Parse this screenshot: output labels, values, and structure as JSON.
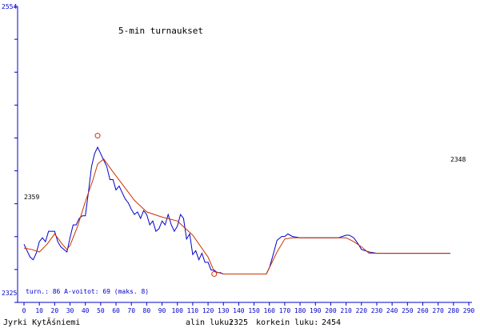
{
  "chart_data": {
    "type": "line",
    "title": "5-min turnaukset",
    "x_ticks": [
      0,
      10,
      20,
      30,
      40,
      50,
      60,
      70,
      80,
      90,
      100,
      110,
      120,
      130,
      140,
      150,
      160,
      170,
      180,
      190,
      200,
      210,
      220,
      230,
      240,
      250,
      260,
      270,
      280,
      290
    ],
    "xlim": [
      0,
      290
    ],
    "y_min_label": "2325",
    "y_max_label": "2554",
    "ylim": [
      2325,
      2554
    ],
    "start_value_label": "2359",
    "end_value_label": "2348",
    "grid": false,
    "series": [
      {
        "color": "#0000cc",
        "x": [
          0,
          2,
          4,
          6,
          8,
          10,
          12,
          14,
          16,
          18,
          20,
          22,
          24,
          26,
          28,
          30,
          32,
          34,
          36,
          38,
          40,
          42,
          44,
          46,
          48,
          50,
          52,
          54,
          56,
          58,
          60,
          62,
          64,
          66,
          68,
          70,
          72,
          74,
          76,
          78,
          80,
          82,
          84,
          86,
          88,
          90,
          92,
          94,
          96,
          98,
          100,
          102,
          104,
          106,
          108,
          110,
          112,
          114,
          116,
          118,
          120,
          122,
          124,
          126,
          128,
          130,
          135,
          140,
          145,
          150,
          155,
          158,
          160,
          162,
          165,
          168,
          170,
          172,
          175,
          180,
          185,
          190,
          195,
          200,
          205,
          210,
          212,
          215,
          218,
          220,
          225,
          230,
          240,
          250,
          260,
          270,
          278
        ],
        "y": [
          2370,
          2365,
          2360,
          2358,
          2363,
          2372,
          2375,
          2372,
          2380,
          2380,
          2380,
          2372,
          2368,
          2366,
          2364,
          2375,
          2385,
          2385,
          2390,
          2392,
          2392,
          2410,
          2430,
          2440,
          2445,
          2440,
          2435,
          2430,
          2420,
          2420,
          2412,
          2415,
          2410,
          2405,
          2402,
          2397,
          2393,
          2395,
          2390,
          2396,
          2393,
          2385,
          2388,
          2380,
          2382,
          2388,
          2385,
          2393,
          2385,
          2380,
          2384,
          2393,
          2390,
          2374,
          2378,
          2362,
          2365,
          2358,
          2363,
          2356,
          2356,
          2350,
          2350,
          2348,
          2348,
          2347,
          2347,
          2347,
          2347,
          2347,
          2347,
          2347,
          2352,
          2360,
          2373,
          2376,
          2376,
          2378,
          2376,
          2375,
          2375,
          2375,
          2375,
          2375,
          2375,
          2377,
          2377,
          2375,
          2370,
          2366,
          2364,
          2363,
          2363,
          2363,
          2363,
          2363,
          2363
        ]
      },
      {
        "color": "#cc3300",
        "x": [
          0,
          5,
          10,
          15,
          20,
          25,
          28,
          30,
          35,
          40,
          45,
          48,
          52,
          58,
          65,
          72,
          80,
          90,
          100,
          110,
          120,
          124,
          130,
          140,
          150,
          158,
          165,
          170,
          175,
          180,
          190,
          200,
          210,
          215,
          220,
          225,
          230,
          240,
          250,
          260,
          270,
          278
        ],
        "y": [
          2367,
          2366,
          2364,
          2370,
          2378,
          2370,
          2366,
          2369,
          2384,
          2403,
          2420,
          2432,
          2436,
          2426,
          2415,
          2404,
          2395,
          2391,
          2388,
          2377,
          2360,
          2349,
          2347,
          2347,
          2347,
          2347,
          2364,
          2374,
          2375,
          2375,
          2375,
          2375,
          2375,
          2372,
          2368,
          2363,
          2363,
          2363,
          2363,
          2363,
          2363,
          2363
        ]
      }
    ],
    "markers": [
      {
        "x": 48,
        "y": 2454,
        "color": "#cc3300"
      },
      {
        "x": 124,
        "y": 2347,
        "color": "#cc3300"
      }
    ]
  },
  "footer": {
    "stats_line": "turn.: 86  A-voitot: 69  (maks. 8)",
    "author": "Jyrki KytĂśniemi",
    "low_label": "alin luku:",
    "low_value": "2325",
    "high_label": "korkein luku:",
    "high_value": "2454"
  }
}
